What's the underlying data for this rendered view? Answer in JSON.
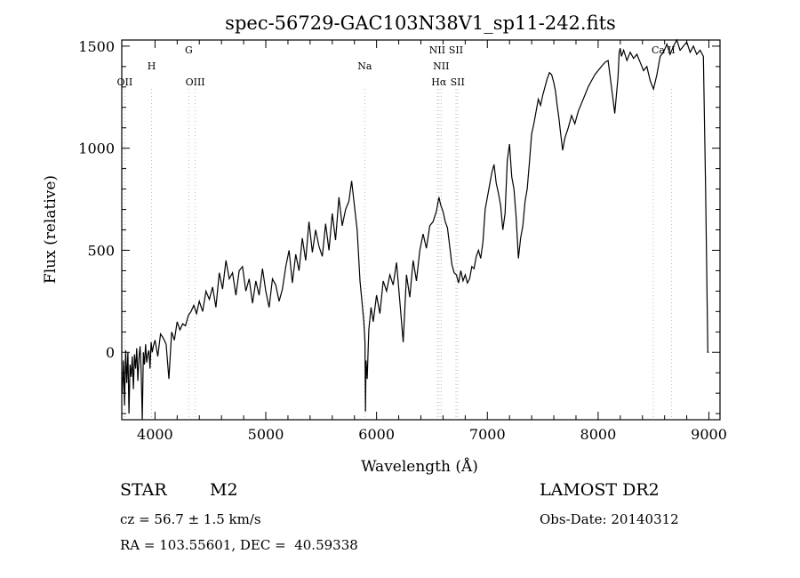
{
  "chart_data": {
    "type": "line",
    "title": "spec-56729-GAC103N38V1_sp11-242.fits",
    "xlabel": "Wavelength (Å)",
    "ylabel": "Flux (relative)",
    "xlim": [
      3700,
      9100
    ],
    "ylim": [
      -330,
      1530
    ],
    "xticks": [
      4000,
      5000,
      6000,
      7000,
      8000,
      9000
    ],
    "yticks": [
      0,
      500,
      1000,
      1500
    ],
    "grid": false,
    "colors": {
      "spectrum": "#000000",
      "lines": "#bbbbbb"
    },
    "series": [
      {
        "values_x": [
          3705,
          3715,
          3725,
          3735,
          3745,
          3755,
          3765,
          3775,
          3785,
          3795,
          3805,
          3815,
          3825,
          3835,
          3845,
          3855,
          3865,
          3875,
          3885,
          3895,
          3905,
          3915,
          3925,
          3935,
          3945,
          3955,
          3965,
          3975,
          3985,
          4000,
          4025,
          4050,
          4075,
          4100,
          4125,
          4150,
          4175,
          4200,
          4225,
          4250,
          4275,
          4300,
          4325,
          4350,
          4375,
          4400,
          4430,
          4460,
          4490,
          4520,
          4550,
          4580,
          4610,
          4640,
          4670,
          4700,
          4730,
          4760,
          4790,
          4820,
          4850,
          4880,
          4910,
          4940,
          4970,
          5000,
          5030,
          5060,
          5090,
          5120,
          5150,
          5180,
          5210,
          5240,
          5270,
          5300,
          5330,
          5360,
          5390,
          5420,
          5450,
          5480,
          5510,
          5540,
          5570,
          5600,
          5630,
          5660,
          5690,
          5720,
          5750,
          5775,
          5800,
          5825,
          5850,
          5870,
          5885,
          5895,
          5900,
          5905,
          5915,
          5930,
          5950,
          5970,
          6000,
          6030,
          6060,
          6090,
          6120,
          6150,
          6180,
          6210,
          6240,
          6270,
          6300,
          6330,
          6360,
          6390,
          6420,
          6450,
          6480,
          6510,
          6540,
          6563,
          6580,
          6600,
          6620,
          6640,
          6660,
          6680,
          6700,
          6720,
          6740,
          6760,
          6780,
          6800,
          6820,
          6840,
          6860,
          6880,
          6900,
          6920,
          6940,
          6960,
          6980,
          7000,
          7020,
          7040,
          7060,
          7080,
          7100,
          7120,
          7140,
          7160,
          7180,
          7200,
          7220,
          7240,
          7260,
          7280,
          7300,
          7320,
          7340,
          7360,
          7380,
          7400,
          7420,
          7440,
          7460,
          7480,
          7500,
          7520,
          7540,
          7560,
          7580,
          7600,
          7615,
          7630,
          7645,
          7660,
          7680,
          7700,
          7730,
          7760,
          7790,
          7820,
          7850,
          7880,
          7910,
          7940,
          7970,
          8000,
          8030,
          8060,
          8090,
          8120,
          8150,
          8180,
          8190,
          8200,
          8210,
          8230,
          8260,
          8290,
          8320,
          8350,
          8380,
          8410,
          8440,
          8470,
          8500,
          8530,
          8560,
          8590,
          8620,
          8650,
          8680,
          8710,
          8740,
          8770,
          8800,
          8830,
          8860,
          8890,
          8920,
          8950,
          8970,
          8990,
          9000
        ],
        "values": [
          -200,
          -40,
          -260,
          10,
          -150,
          0,
          -300,
          -60,
          -120,
          -20,
          -180,
          -10,
          -80,
          20,
          -140,
          -30,
          30,
          -90,
          -330,
          0,
          -60,
          40,
          -50,
          -10,
          10,
          -80,
          50,
          0,
          30,
          60,
          -20,
          90,
          70,
          40,
          -130,
          100,
          60,
          150,
          110,
          140,
          130,
          180,
          200,
          230,
          190,
          250,
          200,
          300,
          260,
          320,
          220,
          390,
          310,
          450,
          360,
          390,
          280,
          400,
          420,
          300,
          360,
          240,
          350,
          280,
          410,
          300,
          220,
          360,
          330,
          250,
          310,
          420,
          500,
          340,
          480,
          400,
          560,
          450,
          640,
          490,
          600,
          520,
          470,
          630,
          500,
          680,
          550,
          760,
          620,
          700,
          740,
          840,
          720,
          600,
          350,
          240,
          150,
          50,
          -290,
          -40,
          -130,
          110,
          220,
          150,
          280,
          190,
          350,
          300,
          380,
          330,
          440,
          250,
          50,
          380,
          270,
          450,
          350,
          500,
          580,
          510,
          620,
          640,
          690,
          760,
          720,
          690,
          640,
          610,
          520,
          430,
          390,
          380,
          340,
          400,
          350,
          380,
          340,
          360,
          420,
          410,
          470,
          500,
          460,
          540,
          700,
          760,
          820,
          880,
          920,
          830,
          780,
          720,
          600,
          680,
          940,
          1020,
          860,
          800,
          660,
          460,
          560,
          620,
          740,
          800,
          930,
          1070,
          1120,
          1180,
          1240,
          1210,
          1260,
          1300,
          1340,
          1370,
          1360,
          1320,
          1280,
          1210,
          1150,
          1080,
          990,
          1050,
          1100,
          1160,
          1120,
          1180,
          1220,
          1260,
          1300,
          1330,
          1360,
          1380,
          1400,
          1420,
          1430,
          1300,
          1170,
          1350,
          1470,
          1490,
          1450,
          1480,
          1430,
          1470,
          1440,
          1460,
          1420,
          1380,
          1400,
          1330,
          1290,
          1360,
          1450,
          1470,
          1510,
          1460,
          1500,
          1530,
          1480,
          1500,
          1520,
          1470,
          1500,
          1460,
          1480,
          1450,
          800,
          0,
          0
        ]
      }
    ],
    "line_markers": [
      {
        "label": "OII",
        "wavelength": 3727,
        "row": 3
      },
      {
        "label": "H",
        "wavelength": 3969,
        "row": 2
      },
      {
        "label": "G",
        "wavelength": 4305,
        "row": 1
      },
      {
        "label": "OIII",
        "wavelength": 4363,
        "row": 3
      },
      {
        "label": "Na",
        "wavelength": 5893,
        "row": 2
      },
      {
        "label": "NII",
        "wavelength": 6548,
        "row": 1
      },
      {
        "label": "SII",
        "wavelength": 6717,
        "row": 1
      },
      {
        "label": "NII",
        "wavelength": 6583,
        "row": 2
      },
      {
        "label": "Hα",
        "wavelength": 6563,
        "row": 3
      },
      {
        "label": "SII",
        "wavelength": 6731,
        "row": 3
      },
      {
        "label": "Ca",
        "wavelength": 8542,
        "row": 1
      },
      {
        "label": "II",
        "wavelength": 8662,
        "row": 1
      }
    ],
    "marker_lines_x": [
      3727,
      3969,
      4305,
      4363,
      5893,
      6548,
      6563,
      6583,
      6717,
      6731,
      8498,
      8662
    ]
  },
  "info": {
    "object_type": "STAR",
    "subclass": "M2",
    "survey": "LAMOST DR2",
    "cz": "cz = 56.7 ± 1.5 km/s",
    "obs_date": "Obs-Date: 20140312",
    "coords": "RA = 103.55601, DEC =  40.59338"
  }
}
